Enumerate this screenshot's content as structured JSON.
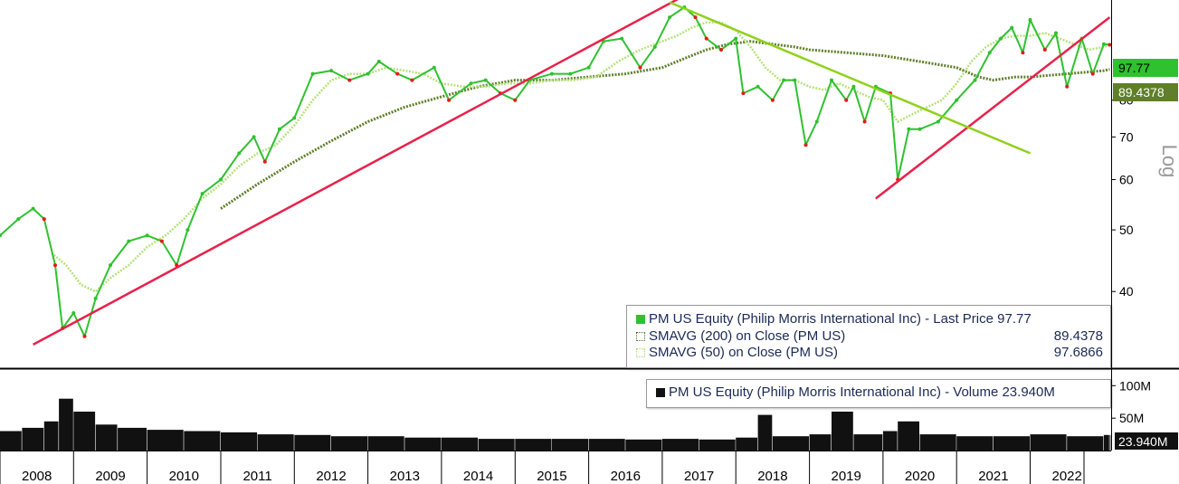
{
  "chart_data": [
    {
      "type": "line",
      "panel": "price",
      "y_scale": "log",
      "y_axis_label": "Log",
      "y_ticks": [
        40,
        50,
        60,
        70,
        80
      ],
      "ylim": [
        31,
        112
      ],
      "x_years": [
        "2008",
        "2009",
        "2010",
        "2011",
        "2012",
        "2013",
        "2014",
        "2015",
        "2016",
        "2017",
        "2018",
        "2019",
        "2020",
        "2021",
        "2022"
      ],
      "xlim": [
        2008.0,
        2023.1
      ],
      "grid": false,
      "legend_position": "bottom-right",
      "legend": {
        "price_label": "PM US Equity (Philip Morris International Inc) - Last Price 97.77",
        "sma200_label": "SMAVG (200)  on Close (PM US)",
        "sma200_value": "89.4378",
        "sma50_label": "SMAVG (50)  on Close (PM US)",
        "sma50_value": "97.6866"
      },
      "tags": {
        "last_price": "97.77",
        "sma200": "89.4378"
      },
      "series": [
        {
          "name": "PM US Equity (Philip Morris International Inc) - Last Price",
          "color": "#2fc12f",
          "x": [
            2008.0,
            2008.25,
            2008.45,
            2008.6,
            2008.75,
            2008.85,
            2009.0,
            2009.15,
            2009.3,
            2009.5,
            2009.75,
            2010.0,
            2010.2,
            2010.4,
            2010.55,
            2010.75,
            2011.0,
            2011.25,
            2011.45,
            2011.6,
            2011.8,
            2012.0,
            2012.25,
            2012.5,
            2012.75,
            2013.0,
            2013.15,
            2013.4,
            2013.6,
            2013.9,
            2014.1,
            2014.4,
            2014.6,
            2014.8,
            2015.0,
            2015.2,
            2015.5,
            2015.75,
            2016.0,
            2016.2,
            2016.45,
            2016.7,
            2016.9,
            2017.1,
            2017.3,
            2017.45,
            2017.6,
            2017.8,
            2018.0,
            2018.1,
            2018.3,
            2018.5,
            2018.65,
            2018.8,
            2018.95,
            2019.1,
            2019.3,
            2019.5,
            2019.6,
            2019.75,
            2019.9,
            2020.1,
            2020.2,
            2020.35,
            2020.5,
            2020.75,
            2021.0,
            2021.25,
            2021.45,
            2021.6,
            2021.75,
            2021.9,
            2022.0,
            2022.2,
            2022.35,
            2022.5,
            2022.7,
            2022.85,
            2023.0,
            2023.08
          ],
          "y": [
            49,
            52,
            54,
            52,
            44,
            35,
            37,
            34,
            39,
            44,
            48,
            49,
            48,
            44,
            50,
            57,
            60,
            66,
            70,
            64,
            72,
            75,
            88,
            89,
            86,
            88,
            92,
            88,
            86,
            90,
            80,
            85,
            86,
            82,
            80,
            86,
            88,
            88,
            90,
            99,
            100,
            90,
            97,
            108,
            112,
            108,
            100,
            96,
            100,
            82,
            84,
            80,
            86,
            86,
            68,
            74,
            86,
            80,
            84,
            74,
            84,
            82,
            60,
            72,
            72,
            74,
            80,
            86,
            95,
            100,
            104,
            95,
            107,
            96,
            102,
            84,
            100,
            88,
            98,
            97.77
          ]
        },
        {
          "name": "SMAVG (200)  on Close (PM US)",
          "color": "#5f7f2a",
          "x": [
            2011.0,
            2011.5,
            2012.0,
            2012.5,
            2013.0,
            2013.5,
            2014.0,
            2014.5,
            2015.0,
            2015.5,
            2016.0,
            2016.5,
            2017.0,
            2017.3,
            2017.6,
            2017.9,
            2018.2,
            2018.5,
            2018.8,
            2019.0,
            2019.5,
            2020.0,
            2020.5,
            2021.0,
            2021.3,
            2021.5,
            2021.8,
            2022.0,
            2022.5,
            2023.0,
            2023.08
          ],
          "y": [
            54,
            59,
            64,
            69,
            74,
            78,
            81,
            84,
            86,
            86,
            87,
            88,
            90,
            93,
            96,
            98,
            99,
            98,
            97,
            96,
            95,
            94,
            92,
            90,
            87,
            86,
            87,
            87,
            88,
            89,
            89.4378
          ]
        },
        {
          "name": "SMAVG (50)  on Close (PM US)",
          "color": "#b5e27a",
          "x": [
            2008.7,
            2008.9,
            2009.1,
            2009.3,
            2009.5,
            2009.75,
            2010.0,
            2010.25,
            2010.5,
            2010.75,
            2011.0,
            2011.25,
            2011.5,
            2011.75,
            2012.0,
            2012.25,
            2012.5,
            2012.75,
            2013.0,
            2013.25,
            2013.5,
            2013.75,
            2014.0,
            2014.3,
            2014.6,
            2014.9,
            2015.2,
            2015.5,
            2015.8,
            2016.1,
            2016.4,
            2016.7,
            2017.0,
            2017.2,
            2017.4,
            2017.6,
            2017.8,
            2018.0,
            2018.2,
            2018.4,
            2018.6,
            2018.8,
            2019.0,
            2019.2,
            2019.4,
            2019.6,
            2019.8,
            2020.0,
            2020.2,
            2020.4,
            2020.6,
            2020.8,
            2021.0,
            2021.2,
            2021.4,
            2021.6,
            2021.8,
            2022.0,
            2022.2,
            2022.4,
            2022.6,
            2022.8,
            2023.0,
            2023.08
          ],
          "y": [
            46,
            44,
            41,
            40,
            42,
            44,
            47,
            49,
            52,
            56,
            59,
            63,
            66,
            68,
            73,
            80,
            86,
            88,
            88,
            90,
            89,
            88,
            85,
            84,
            84,
            85,
            85,
            86,
            86,
            87,
            92,
            96,
            99,
            101,
            104,
            106,
            106,
            103,
            97,
            90,
            86,
            86,
            84,
            83,
            85,
            83,
            81,
            80,
            74,
            76,
            78,
            80,
            85,
            92,
            97,
            100,
            101,
            101,
            102,
            100,
            98,
            96,
            97,
            97.6866
          ]
        }
      ],
      "trendlines": [
        {
          "name": "support-2009",
          "color": "#e8214a",
          "x": [
            2008.45,
            2017.25
          ],
          "y": [
            33,
            116
          ]
        },
        {
          "name": "support-2020",
          "color": "#e8214a",
          "x": [
            2019.9,
            2023.08
          ],
          "y": [
            56,
            108
          ]
        },
        {
          "name": "resistance-2017",
          "color": "#8fd11a",
          "x": [
            2017.1,
            2022.0
          ],
          "y": [
            114,
            66
          ]
        }
      ]
    },
    {
      "type": "bar",
      "panel": "volume",
      "y_ticks": [
        "100M",
        "50M"
      ],
      "y_tick_values": [
        100,
        50
      ],
      "unit": "millions of shares",
      "ylim": [
        0,
        120
      ],
      "legend_position": "top-right",
      "legend": {
        "label": "PM US Equity (Philip Morris International Inc) - Volume 23.940M"
      },
      "tags": {
        "last_volume": "23.940M"
      },
      "series": [
        {
          "name": "PM US Equity (Philip Morris International Inc) - Volume",
          "color": "#111111",
          "x": [
            2008.0,
            2008.3,
            2008.6,
            2008.8,
            2009.0,
            2009.3,
            2009.6,
            2010.0,
            2010.5,
            2011.0,
            2011.5,
            2012.0,
            2012.5,
            2013.0,
            2013.5,
            2014.0,
            2014.5,
            2015.0,
            2015.5,
            2016.0,
            2016.5,
            2017.0,
            2017.5,
            2018.0,
            2018.3,
            2018.5,
            2019.0,
            2019.3,
            2019.6,
            2020.0,
            2020.2,
            2020.5,
            2021.0,
            2021.5,
            2022.0,
            2022.5,
            2023.0,
            2023.08
          ],
          "y": [
            30,
            35,
            45,
            80,
            60,
            40,
            35,
            32,
            30,
            28,
            25,
            24,
            22,
            22,
            20,
            20,
            18,
            18,
            18,
            18,
            17,
            18,
            17,
            20,
            55,
            22,
            25,
            60,
            25,
            30,
            45,
            25,
            22,
            22,
            25,
            22,
            24,
            23.94
          ]
        }
      ]
    }
  ]
}
